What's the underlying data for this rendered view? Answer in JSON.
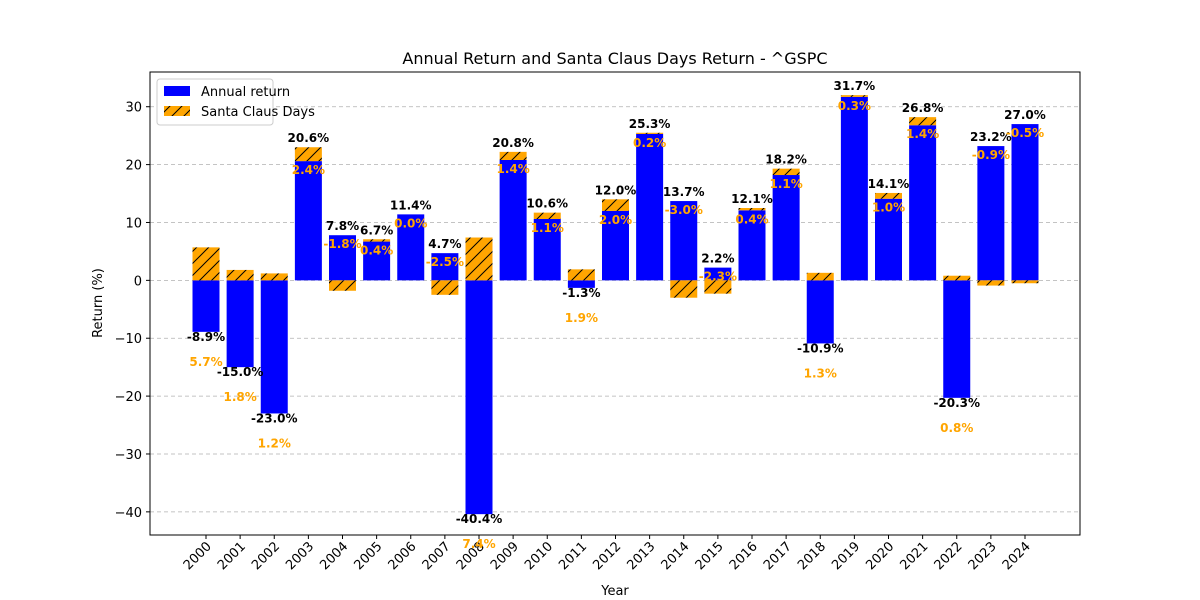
{
  "chart_data": {
    "type": "bar",
    "title": "Annual Return and Santa Claus Days Return - ^GSPC",
    "xlabel": "Year",
    "ylabel": "Return (%)",
    "ylim": [
      -44,
      36
    ],
    "yticks": [
      -40,
      -30,
      -20,
      -10,
      0,
      10,
      20,
      30
    ],
    "grid": "y-dashed",
    "legend_position": "top-left",
    "categories": [
      "2000",
      "2001",
      "2002",
      "2003",
      "2004",
      "2005",
      "2006",
      "2007",
      "2008",
      "2009",
      "2010",
      "2011",
      "2012",
      "2013",
      "2014",
      "2015",
      "2016",
      "2017",
      "2018",
      "2019",
      "2020",
      "2021",
      "2022",
      "2023",
      "2024"
    ],
    "series": [
      {
        "name": "Annual return",
        "color": "#0000FF",
        "values": [
          -8.9,
          -15.0,
          -23.0,
          20.6,
          7.8,
          6.7,
          11.4,
          4.7,
          -40.4,
          20.8,
          10.6,
          -1.3,
          12.0,
          25.3,
          13.7,
          2.2,
          12.1,
          18.2,
          -10.9,
          31.7,
          14.1,
          26.8,
          -20.3,
          23.2,
          27.0
        ],
        "labels": [
          "-8.9%",
          "-15.0%",
          "-23.0%",
          "20.6%",
          "7.8%",
          "6.7%",
          "11.4%",
          "4.7%",
          "-40.4%",
          "20.8%",
          "10.6%",
          "-1.3%",
          "12.0%",
          "25.3%",
          "13.7%",
          "2.2%",
          "12.1%",
          "18.2%",
          "-10.9%",
          "31.7%",
          "14.1%",
          "26.8%",
          "-20.3%",
          "23.2%",
          "27.0%"
        ]
      },
      {
        "name": "Santa Claus Days",
        "color": "#FFA500",
        "hatch": "diagonal",
        "values": [
          5.7,
          1.8,
          1.2,
          2.4,
          -1.8,
          0.4,
          0.0,
          -2.5,
          7.4,
          1.4,
          1.1,
          1.9,
          2.0,
          0.2,
          -3.0,
          -2.3,
          0.4,
          1.1,
          1.3,
          0.3,
          1.0,
          1.4,
          0.8,
          -0.9,
          -0.5
        ],
        "labels": [
          "5.7%",
          "1.8%",
          "1.2%",
          "2.4%",
          "-1.8%",
          "0.4%",
          "0.0%",
          "-2.5%",
          "7.4%",
          "1.4%",
          "1.1%",
          "1.9%",
          "2.0%",
          "0.2%",
          "-3.0%",
          "-2.3%",
          "0.4%",
          "1.1%",
          "1.3%",
          "0.3%",
          "1.0%",
          "1.4%",
          "0.8%",
          "-0.9%",
          "-0.5%"
        ]
      }
    ]
  }
}
